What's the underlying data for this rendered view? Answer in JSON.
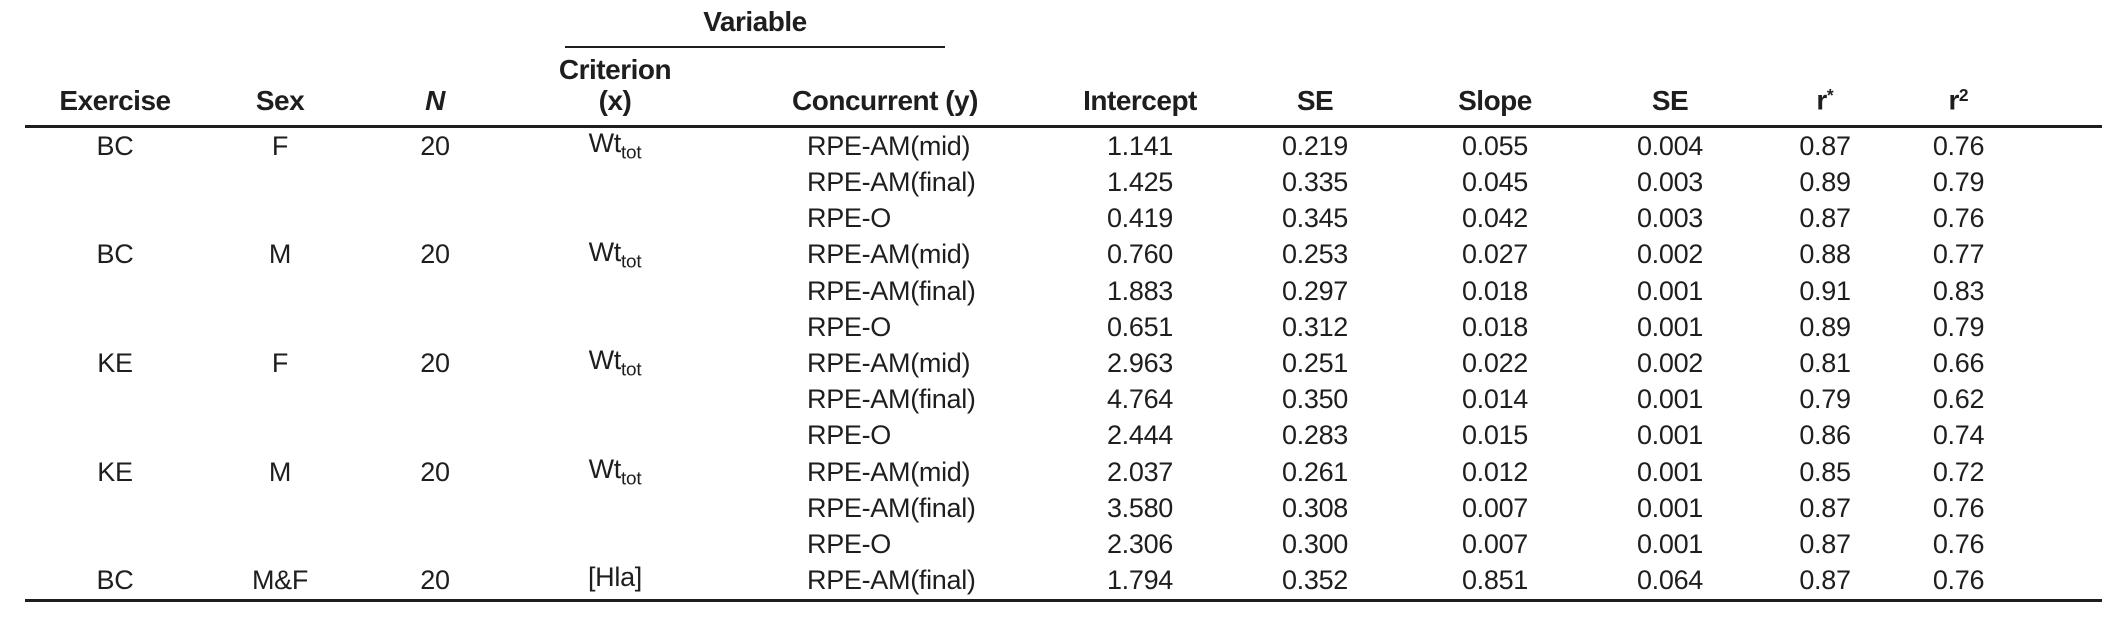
{
  "colors": {
    "text": "#1e1e1e",
    "rule": "#1e1e1e",
    "background": "#ffffff"
  },
  "table": {
    "spanner_label": "Variable",
    "headers": {
      "exercise": "Exercise",
      "sex": "Sex",
      "n": "N",
      "criterion_line1": "Criterion",
      "criterion_line2": "(x)",
      "concurrent": "Concurrent (y)",
      "intercept": "Intercept",
      "se_intercept": "SE",
      "slope": "Slope",
      "se_slope": "SE",
      "r_base": "r",
      "r_sup": "*",
      "r2_base": "r",
      "r2_sup": "2"
    },
    "rows": [
      {
        "exercise": "BC",
        "sex": "F",
        "n": "20",
        "criterion_base": "Wt",
        "criterion_sub": "tot",
        "concurrent": "RPE-AM(mid)",
        "intercept": "1.141",
        "se1": "0.219",
        "slope": "0.055",
        "se2": "0.004",
        "r": "0.87",
        "r2": "0.76"
      },
      {
        "exercise": "",
        "sex": "",
        "n": "",
        "criterion_base": "",
        "criterion_sub": "",
        "concurrent": "RPE-AM(final)",
        "intercept": "1.425",
        "se1": "0.335",
        "slope": "0.045",
        "se2": "0.003",
        "r": "0.89",
        "r2": "0.79"
      },
      {
        "exercise": "",
        "sex": "",
        "n": "",
        "criterion_base": "",
        "criterion_sub": "",
        "concurrent": "RPE-O",
        "intercept": "0.419",
        "se1": "0.345",
        "slope": "0.042",
        "se2": "0.003",
        "r": "0.87",
        "r2": "0.76"
      },
      {
        "exercise": "BC",
        "sex": "M",
        "n": "20",
        "criterion_base": "Wt",
        "criterion_sub": "tot",
        "concurrent": "RPE-AM(mid)",
        "intercept": "0.760",
        "se1": "0.253",
        "slope": "0.027",
        "se2": "0.002",
        "r": "0.88",
        "r2": "0.77"
      },
      {
        "exercise": "",
        "sex": "",
        "n": "",
        "criterion_base": "",
        "criterion_sub": "",
        "concurrent": "RPE-AM(final)",
        "intercept": "1.883",
        "se1": "0.297",
        "slope": "0.018",
        "se2": "0.001",
        "r": "0.91",
        "r2": "0.83"
      },
      {
        "exercise": "",
        "sex": "",
        "n": "",
        "criterion_base": "",
        "criterion_sub": "",
        "concurrent": "RPE-O",
        "intercept": "0.651",
        "se1": "0.312",
        "slope": "0.018",
        "se2": "0.001",
        "r": "0.89",
        "r2": "0.79"
      },
      {
        "exercise": "KE",
        "sex": "F",
        "n": "20",
        "criterion_base": "Wt",
        "criterion_sub": "tot",
        "concurrent": "RPE-AM(mid)",
        "intercept": "2.963",
        "se1": "0.251",
        "slope": "0.022",
        "se2": "0.002",
        "r": "0.81",
        "r2": "0.66"
      },
      {
        "exercise": "",
        "sex": "",
        "n": "",
        "criterion_base": "",
        "criterion_sub": "",
        "concurrent": "RPE-AM(final)",
        "intercept": "4.764",
        "se1": "0.350",
        "slope": "0.014",
        "se2": "0.001",
        "r": "0.79",
        "r2": "0.62"
      },
      {
        "exercise": "",
        "sex": "",
        "n": "",
        "criterion_base": "",
        "criterion_sub": "",
        "concurrent": "RPE-O",
        "intercept": "2.444",
        "se1": "0.283",
        "slope": "0.015",
        "se2": "0.001",
        "r": "0.86",
        "r2": "0.74"
      },
      {
        "exercise": "KE",
        "sex": "M",
        "n": "20",
        "criterion_base": "Wt",
        "criterion_sub": "tot",
        "concurrent": "RPE-AM(mid)",
        "intercept": "2.037",
        "se1": "0.261",
        "slope": "0.012",
        "se2": "0.001",
        "r": "0.85",
        "r2": "0.72"
      },
      {
        "exercise": "",
        "sex": "",
        "n": "",
        "criterion_base": "",
        "criterion_sub": "",
        "concurrent": "RPE-AM(final)",
        "intercept": "3.580",
        "se1": "0.308",
        "slope": "0.007",
        "se2": "0.001",
        "r": "0.87",
        "r2": "0.76"
      },
      {
        "exercise": "",
        "sex": "",
        "n": "",
        "criterion_base": "",
        "criterion_sub": "",
        "concurrent": "RPE-O",
        "intercept": "2.306",
        "se1": "0.300",
        "slope": "0.007",
        "se2": "0.001",
        "r": "0.87",
        "r2": "0.76"
      },
      {
        "exercise": "BC",
        "sex": "M&F",
        "n": "20",
        "criterion_base": "[Hla]",
        "criterion_sub": "",
        "concurrent": "RPE-AM(final)",
        "intercept": "1.794",
        "se1": "0.352",
        "slope": "0.851",
        "se2": "0.064",
        "r": "0.87",
        "r2": "0.76"
      }
    ]
  }
}
